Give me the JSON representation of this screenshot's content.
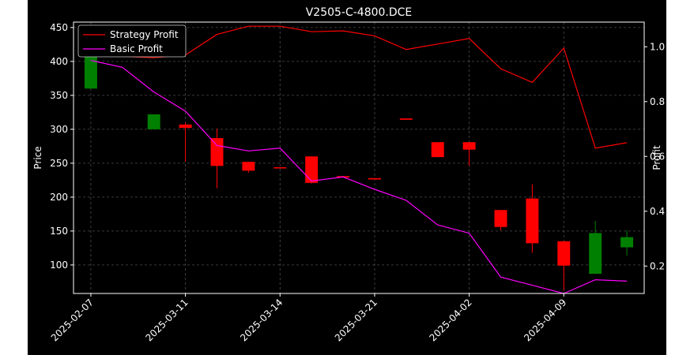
{
  "chart_data": {
    "type": "candlestick",
    "title": "V2505-C-4800.DCE",
    "xlabel": "",
    "ylabel": "Price",
    "y2label": "Profit",
    "ylim": [
      58,
      458
    ],
    "y2lim": [
      0.1,
      1.09
    ],
    "yticks": [
      100,
      150,
      200,
      250,
      300,
      350,
      400,
      450
    ],
    "y2ticks": [
      0.2,
      0.4,
      0.6,
      0.8,
      1.0
    ],
    "x_tick_labels": [
      "2025-02-07",
      "2025-03-11",
      "2025-03-14",
      "2025-03-21",
      "2025-04-02",
      "2025-04-09"
    ],
    "x_tick_positions": [
      0,
      3,
      6,
      9,
      12,
      15
    ],
    "grid": true,
    "legend_position": "top-left",
    "colors": {
      "up": "#008000",
      "down": "#ff0000",
      "strategy": "#ff0000",
      "basic": "#ff00ff",
      "background": "#000000",
      "foreground": "#ffffff"
    },
    "candles": [
      {
        "open": 360,
        "close": 410,
        "high": 410,
        "low": 360
      },
      null,
      {
        "open": 300,
        "close": 322,
        "high": 322,
        "low": 300
      },
      {
        "open": 307,
        "close": 302,
        "high": 310,
        "low": 252
      },
      {
        "open": 287,
        "close": 246,
        "high": 301,
        "low": 213
      },
      {
        "open": 252,
        "close": 239,
        "high": 252,
        "low": 236
      },
      {
        "open": 244,
        "close": 243,
        "high": 244,
        "low": 243
      },
      {
        "open": 260,
        "close": 221,
        "high": 260,
        "low": 220
      },
      {
        "open": 231,
        "close": 229,
        "high": 231,
        "low": 229
      },
      {
        "open": 228,
        "close": 226,
        "high": 228,
        "low": 226
      },
      {
        "open": 316,
        "close": 314,
        "high": 316,
        "low": 314
      },
      {
        "open": 281,
        "close": 259,
        "high": 281,
        "low": 259
      },
      {
        "open": 281,
        "close": 270,
        "high": 281,
        "low": 246
      },
      {
        "open": 181,
        "close": 156,
        "high": 181,
        "low": 151
      },
      {
        "open": 198,
        "close": 132,
        "high": 219,
        "low": 118
      },
      {
        "open": 135,
        "close": 99,
        "high": 135,
        "low": 62
      },
      {
        "open": 87,
        "close": 147,
        "high": 165,
        "low": 87
      },
      {
        "open": 126,
        "close": 141,
        "high": 151,
        "low": 114
      }
    ],
    "series": [
      {
        "name": "Strategy Profit",
        "color": "#ff0000",
        "axis": "right",
        "x": [
          0,
          1,
          2,
          3,
          4,
          5,
          6,
          7,
          8,
          9,
          10,
          11,
          12,
          13,
          14,
          15,
          16,
          17
        ],
        "values": [
          0.985,
          0.965,
          0.96,
          0.97,
          1.045,
          1.075,
          1.075,
          1.055,
          1.058,
          1.04,
          0.99,
          1.01,
          1.03,
          0.92,
          0.87,
          0.995,
          0.63,
          0.65
        ]
      },
      {
        "name": "Basic Profit",
        "color": "#ff00ff",
        "axis": "right",
        "x": [
          0,
          1,
          2,
          3,
          4,
          5,
          6,
          7,
          8,
          9,
          10,
          11,
          12,
          13,
          14,
          15,
          16,
          17
        ],
        "values": [
          0.95,
          0.925,
          0.835,
          0.765,
          0.64,
          0.62,
          0.63,
          0.51,
          0.525,
          0.48,
          0.44,
          0.35,
          0.32,
          0.16,
          0.13,
          0.1,
          0.15,
          0.145
        ]
      }
    ]
  }
}
